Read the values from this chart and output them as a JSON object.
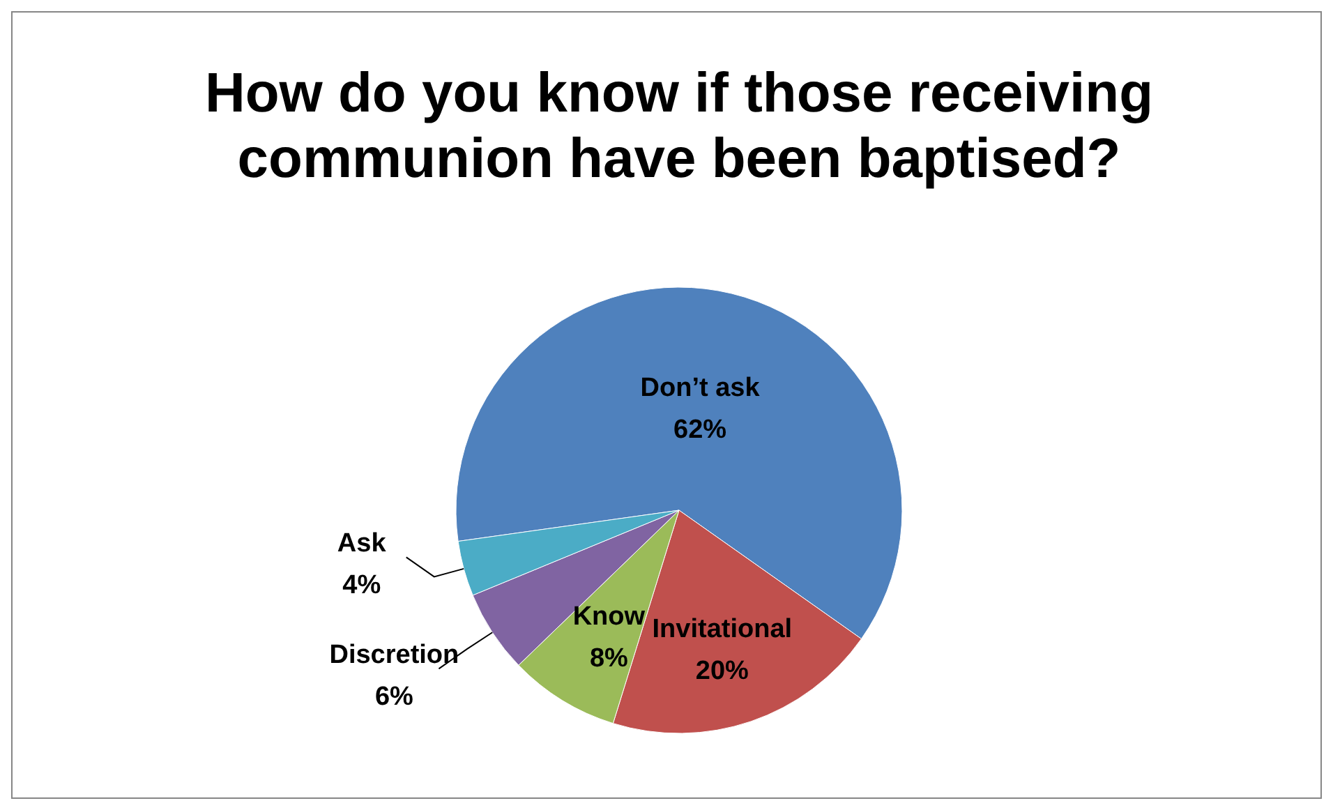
{
  "chart_data": {
    "type": "pie",
    "title": "How do you know if those receiving communion have been baptised?",
    "categories": [
      "Don’t ask",
      "Invitational",
      "Know",
      "Discretion",
      "Ask"
    ],
    "values": [
      62,
      20,
      8,
      6,
      4
    ],
    "colors": [
      "#4f81bd",
      "#c0504d",
      "#9bbb59",
      "#8064a2",
      "#4bacc6"
    ],
    "value_labels": [
      "62%",
      "20%",
      "8%",
      "6%",
      "4%"
    ]
  }
}
